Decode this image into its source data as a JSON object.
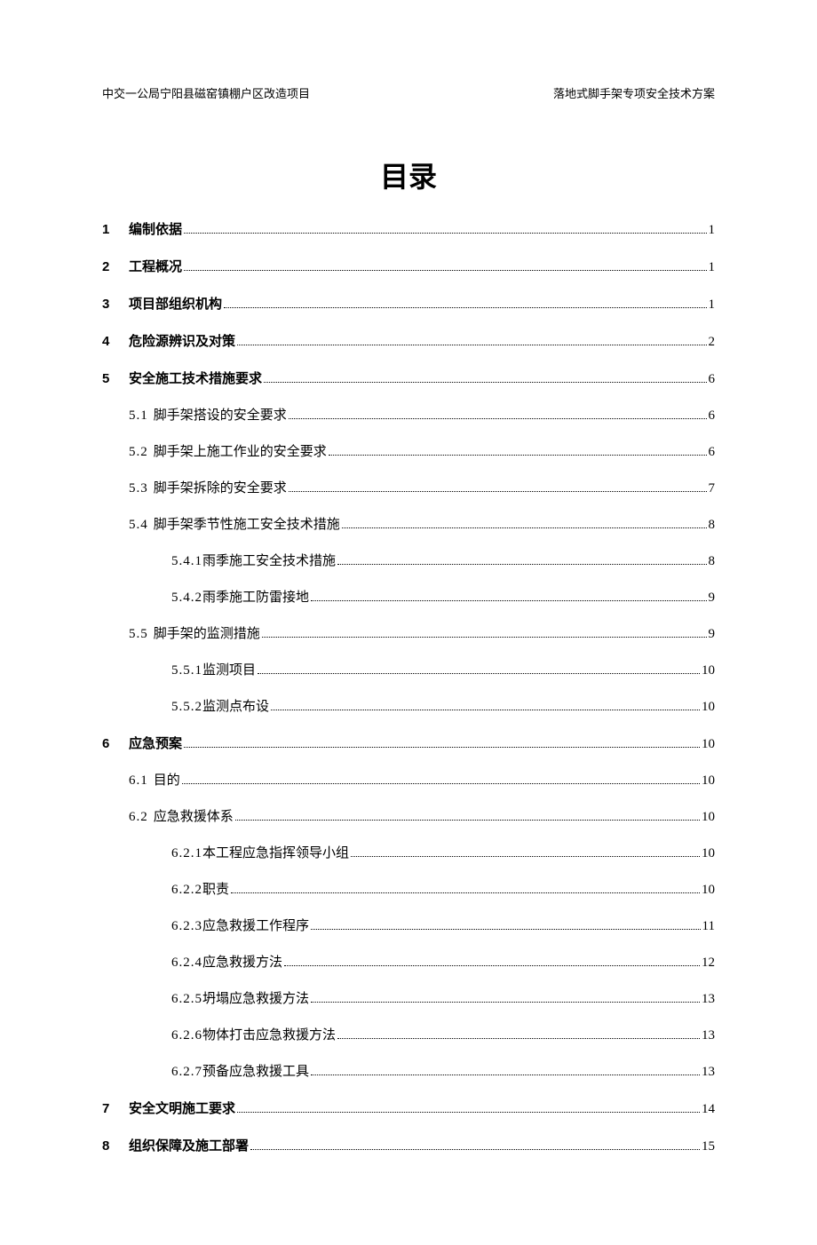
{
  "header": {
    "left": "中交一公局宁阳县磁窑镇棚户区改造项目",
    "right": "落地式脚手架专项安全技术方案"
  },
  "title": "目录",
  "toc": [
    {
      "level": 1,
      "num": "1",
      "label": "编制依据",
      "page": "1"
    },
    {
      "level": 1,
      "num": "2",
      "label": "工程概况",
      "page": "1"
    },
    {
      "level": 1,
      "num": "3",
      "label": "项目部组织机构",
      "page": "1"
    },
    {
      "level": 1,
      "num": "4",
      "label": "危险源辨识及对策",
      "page": "2"
    },
    {
      "level": 1,
      "num": "5",
      "label": "安全施工技术措施要求",
      "page": "6"
    },
    {
      "level": 2,
      "num": "5.1",
      "label": "脚手架搭设的安全要求",
      "page": "6"
    },
    {
      "level": 2,
      "num": "5.2",
      "label": "脚手架上施工作业的安全要求",
      "page": "6"
    },
    {
      "level": 2,
      "num": "5.3",
      "label": "脚手架拆除的安全要求",
      "page": "7"
    },
    {
      "level": 2,
      "num": "5.4",
      "label": "脚手架季节性施工安全技术措施",
      "page": "8"
    },
    {
      "level": 3,
      "num": "5.4.1",
      "label": "雨季施工安全技术措施",
      "page": "8"
    },
    {
      "level": 3,
      "num": "5.4.2",
      "label": "雨季施工防雷接地",
      "page": "9"
    },
    {
      "level": 2,
      "num": "5.5",
      "label": "脚手架的监测措施",
      "page": "9"
    },
    {
      "level": 3,
      "num": "5.5.1",
      "label": "监测项目",
      "page": "10"
    },
    {
      "level": 3,
      "num": "5.5.2",
      "label": "监测点布设",
      "page": "10"
    },
    {
      "level": 1,
      "num": "6",
      "label": "应急预案",
      "page": "10"
    },
    {
      "level": 2,
      "num": "6.1",
      "label": "目的",
      "page": "10"
    },
    {
      "level": 2,
      "num": "6.2",
      "label": "应急救援体系",
      "page": "10"
    },
    {
      "level": 3,
      "num": "6.2.1",
      "label": "本工程应急指挥领导小组",
      "page": "10"
    },
    {
      "level": 3,
      "num": "6.2.2",
      "label": "职责",
      "page": "10"
    },
    {
      "level": 3,
      "num": "6.2.3",
      "label": "应急救援工作程序",
      "page": "11"
    },
    {
      "level": 3,
      "num": "6.2.4",
      "label": "应急救援方法",
      "page": "12"
    },
    {
      "level": 3,
      "num": "6.2.5",
      "label": "坍塌应急救援方法",
      "page": "13"
    },
    {
      "level": 3,
      "num": "6.2.6",
      "label": "物体打击应急救援方法",
      "page": "13"
    },
    {
      "level": 3,
      "num": "6.2.7",
      "label": "预备应急救援工具",
      "page": "13"
    },
    {
      "level": 1,
      "num": "7",
      "label": "安全文明施工要求",
      "page": "14"
    },
    {
      "level": 1,
      "num": "8",
      "label": "组织保障及施工部署",
      "page": "15"
    }
  ]
}
